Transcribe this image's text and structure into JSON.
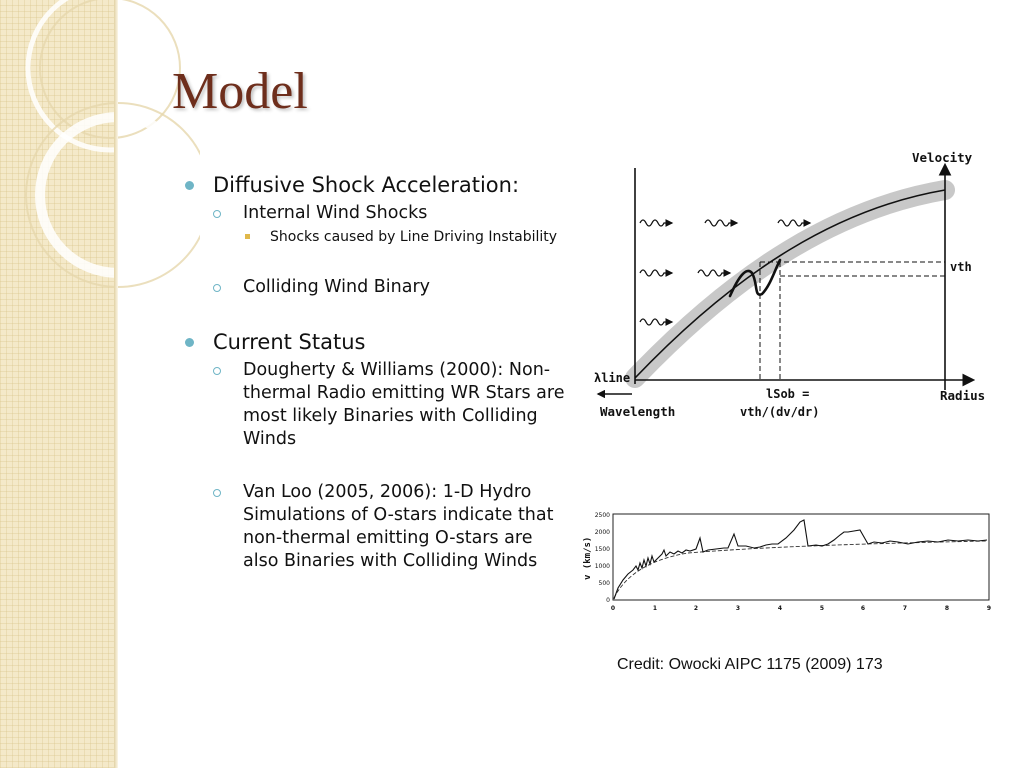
{
  "slide": {
    "title": "Model",
    "bullets": [
      {
        "text": "Diffusive Shock Acceleration:",
        "children": [
          {
            "text": "Internal Wind Shocks",
            "children": [
              {
                "text": "Shocks caused by Line Driving Instability"
              }
            ]
          },
          {
            "text": "Colliding Wind Binary"
          }
        ]
      },
      {
        "text": "Current Status",
        "children": [
          {
            "text": "Dougherty & Williams (2000): Non-thermal Radio emitting WR Stars are most likely Binaries with Colliding Winds"
          },
          {
            "text": "Van Loo (2005, 2006): 1-D Hydro Simulations of O-stars indicate that non-thermal emitting O-stars are also Binaries with Colliding Winds"
          }
        ]
      }
    ],
    "credit": "Credit: Owocki  AIPC 1175 (2009) 173"
  },
  "figure_sobolev": {
    "labels": {
      "velocity": "Velocity",
      "radius": "Radius",
      "wavelength": "Wavelength",
      "lambda_line": "λline",
      "v_th": "vth",
      "l_sob": "lSob =",
      "l_sob_formula": "vth/(dv/dr)"
    }
  },
  "figure_velocity_plot": {
    "y_label": "v (km/s)",
    "y_ticks": [
      "0",
      "500",
      "1000",
      "1500",
      "2000",
      "2500"
    ],
    "x_ticks": [
      "0",
      "1",
      "2",
      "3",
      "4",
      "5",
      "6",
      "7",
      "8",
      "9"
    ]
  },
  "colors": {
    "title": "#6e2e1c",
    "bullet_level1": "#6fb5c6",
    "bullet_level3": "#e0b84a",
    "sidebar": "#f4e9c9"
  }
}
